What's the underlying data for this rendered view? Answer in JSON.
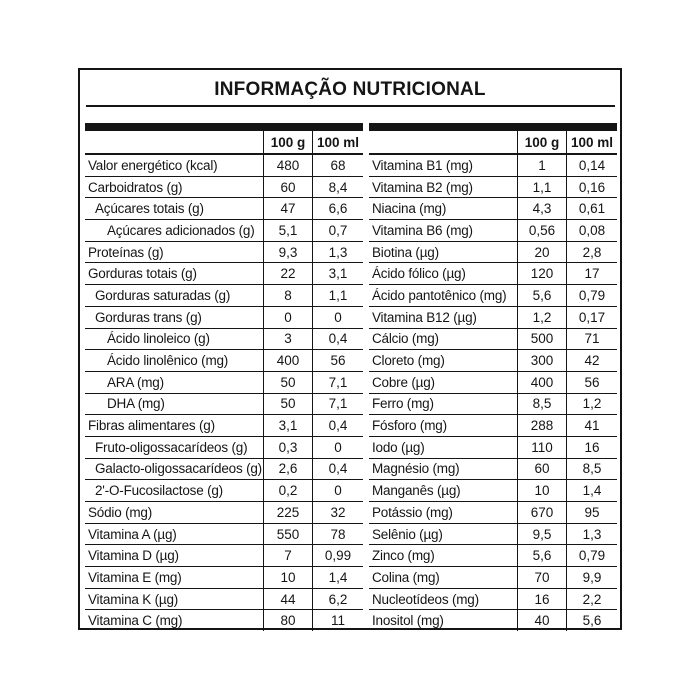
{
  "title": "INFORMAÇÃO NUTRICIONAL",
  "columns": [
    "100 g",
    "100 ml"
  ],
  "left_table": {
    "rows": [
      {
        "name": "Valor energético (kcal)",
        "indent": 0,
        "per_100g": "480",
        "per_100ml": "68"
      },
      {
        "name": "Carboidratos (g)",
        "indent": 0,
        "per_100g": "60",
        "per_100ml": "8,4"
      },
      {
        "name": "Açúcares totais (g)",
        "indent": 1,
        "per_100g": "47",
        "per_100ml": "6,6"
      },
      {
        "name": "Açúcares adicionados (g)",
        "indent": 2,
        "per_100g": "5,1",
        "per_100ml": "0,7"
      },
      {
        "name": "Proteínas (g)",
        "indent": 0,
        "per_100g": "9,3",
        "per_100ml": "1,3"
      },
      {
        "name": "Gorduras totais (g)",
        "indent": 0,
        "per_100g": "22",
        "per_100ml": "3,1"
      },
      {
        "name": "Gorduras saturadas (g)",
        "indent": 1,
        "per_100g": "8",
        "per_100ml": "1,1"
      },
      {
        "name": "Gorduras trans (g)",
        "indent": 1,
        "per_100g": "0",
        "per_100ml": "0"
      },
      {
        "name": "Ácido linoleico (g)",
        "indent": 2,
        "per_100g": "3",
        "per_100ml": "0,4"
      },
      {
        "name": "Ácido linolênico (mg)",
        "indent": 2,
        "per_100g": "400",
        "per_100ml": "56"
      },
      {
        "name": "ARA (mg)",
        "indent": 2,
        "per_100g": "50",
        "per_100ml": "7,1"
      },
      {
        "name": "DHA (mg)",
        "indent": 2,
        "per_100g": "50",
        "per_100ml": "7,1"
      },
      {
        "name": "Fibras alimentares (g)",
        "indent": 0,
        "per_100g": "3,1",
        "per_100ml": "0,4"
      },
      {
        "name": "Fruto-oligossacarídeos (g)",
        "indent": 1,
        "per_100g": "0,3",
        "per_100ml": "0"
      },
      {
        "name": "Galacto-oligossacarídeos (g)",
        "indent": 1,
        "per_100g": "2,6",
        "per_100ml": "0,4"
      },
      {
        "name": "2'-O-Fucosilactose (g)",
        "indent": 1,
        "per_100g": "0,2",
        "per_100ml": "0"
      },
      {
        "name": "Sódio (mg)",
        "indent": 0,
        "per_100g": "225",
        "per_100ml": "32"
      },
      {
        "name": "Vitamina A (µg)",
        "indent": 0,
        "per_100g": "550",
        "per_100ml": "78"
      },
      {
        "name": "Vitamina D (µg)",
        "indent": 0,
        "per_100g": "7",
        "per_100ml": "0,99"
      },
      {
        "name": "Vitamina E (mg)",
        "indent": 0,
        "per_100g": "10",
        "per_100ml": "1,4"
      },
      {
        "name": "Vitamina K (µg)",
        "indent": 0,
        "per_100g": "44",
        "per_100ml": "6,2"
      },
      {
        "name": "Vitamina C (mg)",
        "indent": 0,
        "per_100g": "80",
        "per_100ml": "11"
      }
    ]
  },
  "right_table": {
    "rows": [
      {
        "name": "Vitamina B1 (mg)",
        "indent": 0,
        "per_100g": "1",
        "per_100ml": "0,14"
      },
      {
        "name": "Vitamina B2 (mg)",
        "indent": 0,
        "per_100g": "1,1",
        "per_100ml": "0,16"
      },
      {
        "name": "Niacina (mg)",
        "indent": 0,
        "per_100g": "4,3",
        "per_100ml": "0,61"
      },
      {
        "name": "Vitamina B6 (mg)",
        "indent": 0,
        "per_100g": "0,56",
        "per_100ml": "0,08"
      },
      {
        "name": "Biotina (µg)",
        "indent": 0,
        "per_100g": "20",
        "per_100ml": "2,8"
      },
      {
        "name": "Ácido fólico (µg)",
        "indent": 0,
        "per_100g": "120",
        "per_100ml": "17"
      },
      {
        "name": "Ácido pantotênico (mg)",
        "indent": 0,
        "per_100g": "5,6",
        "per_100ml": "0,79"
      },
      {
        "name": "Vitamina B12 (µg)",
        "indent": 0,
        "per_100g": "1,2",
        "per_100ml": "0,17"
      },
      {
        "name": "Cálcio (mg)",
        "indent": 0,
        "per_100g": "500",
        "per_100ml": "71"
      },
      {
        "name": "Cloreto (mg)",
        "indent": 0,
        "per_100g": "300",
        "per_100ml": "42"
      },
      {
        "name": "Cobre (µg)",
        "indent": 0,
        "per_100g": "400",
        "per_100ml": "56"
      },
      {
        "name": "Ferro (mg)",
        "indent": 0,
        "per_100g": "8,5",
        "per_100ml": "1,2"
      },
      {
        "name": "Fósforo (mg)",
        "indent": 0,
        "per_100g": "288",
        "per_100ml": "41"
      },
      {
        "name": "Iodo (µg)",
        "indent": 0,
        "per_100g": "110",
        "per_100ml": "16"
      },
      {
        "name": "Magnésio (mg)",
        "indent": 0,
        "per_100g": "60",
        "per_100ml": "8,5"
      },
      {
        "name": "Manganês (µg)",
        "indent": 0,
        "per_100g": "10",
        "per_100ml": "1,4"
      },
      {
        "name": "Potássio (mg)",
        "indent": 0,
        "per_100g": "670",
        "per_100ml": "95"
      },
      {
        "name": "Selênio (µg)",
        "indent": 0,
        "per_100g": "9,5",
        "per_100ml": "1,3"
      },
      {
        "name": "Zinco (mg)",
        "indent": 0,
        "per_100g": "5,6",
        "per_100ml": "0,79"
      },
      {
        "name": "Colina (mg)",
        "indent": 0,
        "per_100g": "70",
        "per_100ml": "9,9"
      },
      {
        "name": "Nucleotídeos (mg)",
        "indent": 0,
        "per_100g": "16",
        "per_100ml": "2,2"
      },
      {
        "name": "Inositol (mg)",
        "indent": 0,
        "per_100g": "40",
        "per_100ml": "5,6"
      }
    ]
  }
}
